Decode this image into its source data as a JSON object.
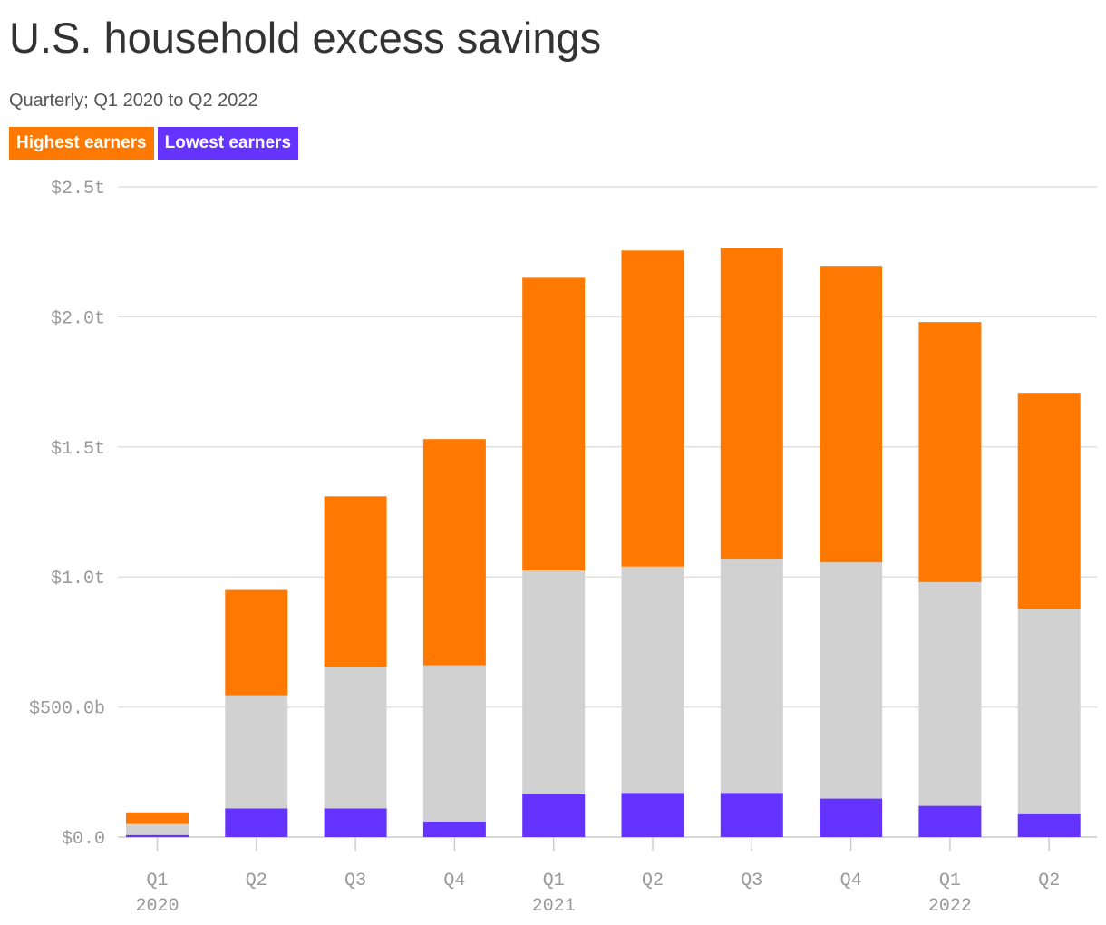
{
  "colors": {
    "highest": "#FF7900",
    "middle": "#D0D1D0",
    "lowest": "#6533FF",
    "grid": "#E0E0E0",
    "axis_text": "#999999"
  },
  "chart_data": {
    "type": "bar",
    "stacked": true,
    "title": "U.S. household excess savings",
    "subtitle": "Quarterly; Q1 2020 to Q2 2022",
    "categories": [
      "Q1",
      "Q2",
      "Q3",
      "Q4",
      "Q1",
      "Q2",
      "Q3",
      "Q4",
      "Q1",
      "Q2"
    ],
    "year_labels": [
      {
        "label": "2020",
        "category_index": 0
      },
      {
        "label": "2021",
        "category_index": 4
      },
      {
        "label": "2022",
        "category_index": 8
      }
    ],
    "y_ticks": [
      {
        "value": 0,
        "label": "$0.0"
      },
      {
        "value": 0.5,
        "label": "$500.0b"
      },
      {
        "value": 1.0,
        "label": "$1.0t"
      },
      {
        "value": 1.5,
        "label": "$1.5t"
      },
      {
        "value": 2.0,
        "label": "$2.0t"
      },
      {
        "value": 2.5,
        "label": "$2.5t"
      }
    ],
    "ylim": [
      0,
      2.5
    ],
    "grid": true,
    "legend": [
      {
        "label": "Highest earners",
        "color": "#FF7900"
      },
      {
        "label": "Lowest earners",
        "color": "#6533FF"
      }
    ],
    "legend_position": "top-left",
    "series": [
      {
        "key": "lowest",
        "color": "#6533FF",
        "values": [
          0.008,
          0.11,
          0.11,
          0.06,
          0.165,
          0.17,
          0.17,
          0.148,
          0.12,
          0.088
        ]
      },
      {
        "key": "middle",
        "color": "#D0D1D0",
        "values": [
          0.042,
          0.435,
          0.545,
          0.6,
          0.86,
          0.87,
          0.9,
          0.908,
          0.86,
          0.79
        ]
      },
      {
        "key": "highest",
        "color": "#FF7900",
        "values": [
          0.045,
          0.405,
          0.655,
          0.87,
          1.125,
          1.215,
          1.195,
          1.14,
          1.0,
          0.83
        ]
      }
    ]
  }
}
